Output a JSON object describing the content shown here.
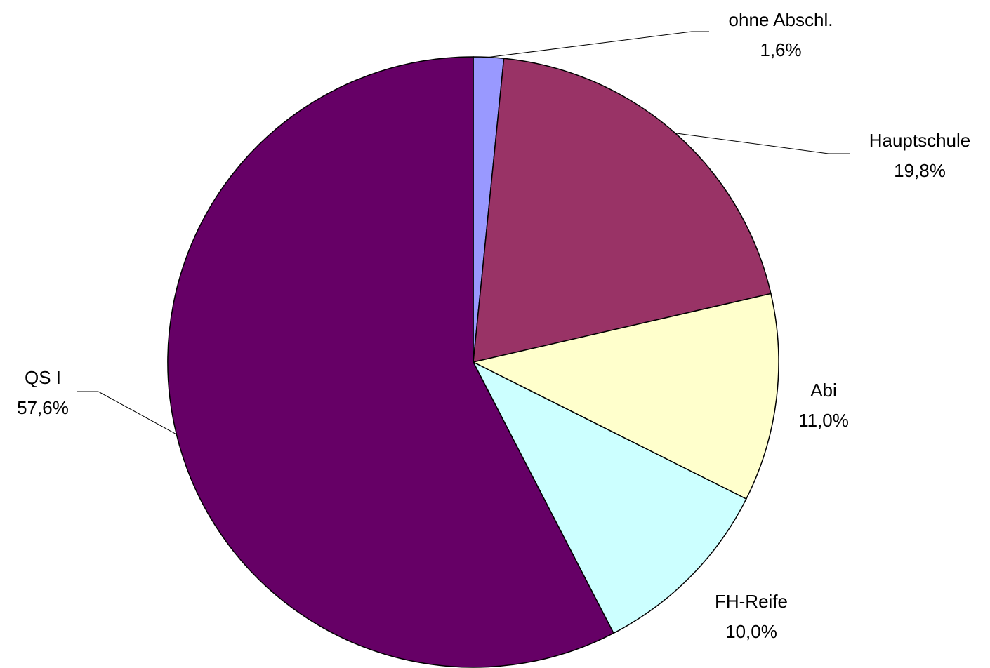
{
  "chart_data": {
    "type": "pie",
    "title": "",
    "slices": [
      {
        "label": "ohne Abschl.",
        "value": 1.6,
        "value_label": "1,6%",
        "color": "#9999ff"
      },
      {
        "label": "Hauptschule",
        "value": 19.8,
        "value_label": "19,8%",
        "color": "#993366"
      },
      {
        "label": "Abi",
        "value": 11.0,
        "value_label": "11,0%",
        "color": "#ffffcc"
      },
      {
        "label": "FH-Reife",
        "value": 10.0,
        "value_label": "10,0%",
        "color": "#ccffff"
      },
      {
        "label": "QS I",
        "value": 57.6,
        "value_label": "57,6%",
        "color": "#660066"
      }
    ],
    "start_angle": "12 o'clock",
    "direction": "clockwise",
    "legend": "none"
  }
}
